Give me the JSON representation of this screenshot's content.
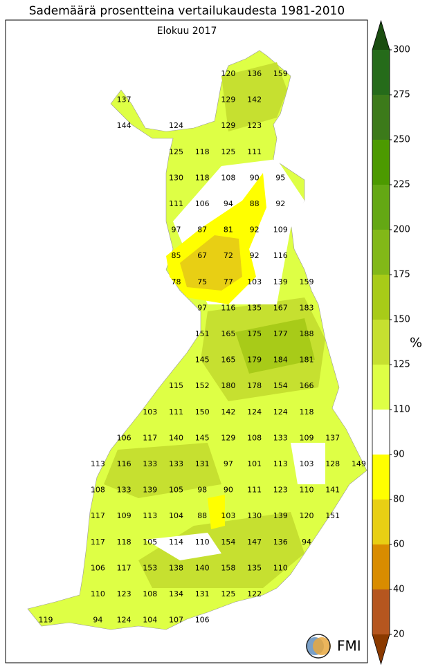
{
  "header": {
    "title": "Sademäärä prosentteina vertailukaudesta 1981-2010",
    "subtitle": "Elokuu 2017"
  },
  "map": {
    "rows": [
      [
        null,
        null,
        null,
        null,
        null,
        null,
        null,
        "120",
        "136",
        "159",
        null,
        null,
        null
      ],
      [
        null,
        null,
        null,
        "137",
        null,
        null,
        null,
        "129",
        "142",
        null,
        null,
        null,
        null
      ],
      [
        null,
        null,
        null,
        "144",
        null,
        "124",
        null,
        "129",
        "123",
        null,
        null,
        null,
        null
      ],
      [
        null,
        null,
        null,
        null,
        null,
        "125",
        "118",
        "125",
        "111",
        null,
        null,
        null,
        null
      ],
      [
        null,
        null,
        null,
        null,
        null,
        "130",
        "118",
        "108",
        "90",
        "95",
        null,
        null,
        null
      ],
      [
        null,
        null,
        null,
        null,
        null,
        "111",
        "106",
        "94",
        "88",
        "92",
        null,
        null,
        null
      ],
      [
        null,
        null,
        null,
        null,
        null,
        "97",
        "87",
        "81",
        "92",
        "109",
        null,
        null,
        null
      ],
      [
        null,
        null,
        null,
        null,
        null,
        "85",
        "67",
        "72",
        "92",
        "116",
        null,
        null,
        null
      ],
      [
        null,
        null,
        null,
        null,
        null,
        "78",
        "75",
        "77",
        "103",
        "139",
        "159",
        null,
        null
      ],
      [
        null,
        null,
        null,
        null,
        null,
        null,
        "97",
        "116",
        "135",
        "167",
        "183",
        null,
        null
      ],
      [
        null,
        null,
        null,
        null,
        null,
        null,
        "151",
        "165",
        "175",
        "177",
        "188",
        null,
        null
      ],
      [
        null,
        null,
        null,
        null,
        null,
        null,
        "145",
        "165",
        "179",
        "184",
        "181",
        null,
        null
      ],
      [
        null,
        null,
        null,
        null,
        null,
        "115",
        "152",
        "180",
        "178",
        "154",
        "166",
        null,
        null
      ],
      [
        null,
        null,
        null,
        null,
        "103",
        "111",
        "150",
        "142",
        "124",
        "124",
        "118",
        null,
        null
      ],
      [
        null,
        null,
        null,
        "106",
        "117",
        "140",
        "145",
        "129",
        "108",
        "133",
        "109",
        "137",
        null
      ],
      [
        null,
        null,
        "113",
        "116",
        "133",
        "133",
        "131",
        "97",
        "101",
        "113",
        "103",
        "128",
        "149"
      ],
      [
        null,
        null,
        "108",
        "133",
        "139",
        "105",
        "98",
        "90",
        "111",
        "123",
        "110",
        "141",
        null
      ],
      [
        null,
        null,
        "117",
        "109",
        "113",
        "104",
        "88",
        "103",
        "130",
        "139",
        "120",
        "151",
        null
      ],
      [
        null,
        null,
        "117",
        "118",
        "105",
        "114",
        "110",
        "154",
        "147",
        "136",
        "94",
        null,
        null
      ],
      [
        null,
        null,
        "106",
        "117",
        "153",
        "138",
        "140",
        "158",
        "135",
        "110",
        null,
        null,
        null
      ],
      [
        null,
        null,
        "110",
        "123",
        "108",
        "134",
        "131",
        "125",
        "122",
        null,
        null,
        null,
        null
      ],
      [
        "119",
        null,
        "94",
        "124",
        "104",
        "107",
        "106",
        null,
        null,
        null,
        null,
        null,
        null
      ]
    ]
  },
  "legend": {
    "unit": "%",
    "ticks": [
      "20",
      "40",
      "60",
      "80",
      "90",
      "110",
      "125",
      "150",
      "175",
      "200",
      "225",
      "250",
      "275",
      "300"
    ],
    "colors": [
      "#b5561f",
      "#d98c00",
      "#e8cf14",
      "#ffff00",
      "#ffffff",
      "#deff45",
      "#c6e030",
      "#a8cb18",
      "#82b818",
      "#64a814",
      "#4c9a00",
      "#3c7a1a",
      "#256b1a"
    ],
    "under_color": "#8b3a00",
    "over_color": "#1a4d10"
  },
  "logo": {
    "text": "FMI"
  }
}
